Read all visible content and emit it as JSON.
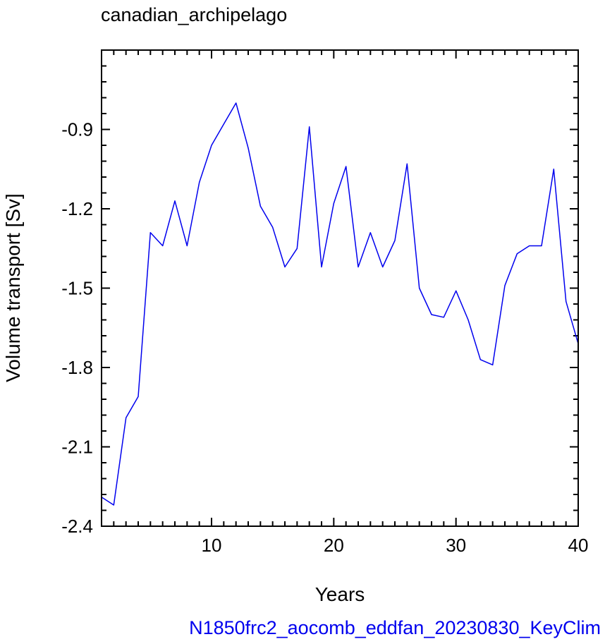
{
  "chart_data": {
    "type": "line",
    "title": "canadian_archipelago",
    "xlabel": "Years",
    "ylabel": "Volume transport [Sv]",
    "footer": "N1850frc2_aocomb_eddfan_20230830_KeyClim",
    "xlim": [
      1,
      40
    ],
    "ylim": [
      -2.4,
      -0.6
    ],
    "x_ticks": [
      10,
      20,
      30,
      40
    ],
    "y_ticks": [
      -2.4,
      -2.1,
      -1.8,
      -1.5,
      -1.2,
      -0.9
    ],
    "x_tick_labels": [
      "10",
      "20",
      "30",
      "40"
    ],
    "y_tick_labels": [
      "-2.4",
      "-2.1",
      "-1.8",
      "-1.5",
      "-1.2",
      "-0.9"
    ],
    "grid": false,
    "line_color": "#0000ee",
    "series": [
      {
        "x": [
          1,
          2,
          3,
          4,
          5,
          6,
          7,
          8,
          9,
          10,
          11,
          12,
          13,
          14,
          15,
          16,
          17,
          18,
          19,
          20,
          21,
          22,
          23,
          24,
          25,
          26,
          27,
          28,
          29,
          30,
          31,
          32,
          33,
          34,
          35,
          36,
          37,
          38,
          39,
          40
        ],
        "values": [
          -2.29,
          -2.32,
          -1.99,
          -1.91,
          -1.29,
          -1.34,
          -1.17,
          -1.34,
          -1.1,
          -0.96,
          -0.88,
          -0.8,
          -0.97,
          -1.19,
          -1.27,
          -1.42,
          -1.35,
          -0.89,
          -1.42,
          -1.18,
          -1.04,
          -1.42,
          -1.29,
          -1.42,
          -1.32,
          -1.03,
          -1.5,
          -1.6,
          -1.61,
          -1.51,
          -1.62,
          -1.77,
          -1.79,
          -1.49,
          -1.37,
          -1.34,
          -1.34,
          -1.05,
          -1.55,
          -1.71
        ]
      }
    ]
  }
}
